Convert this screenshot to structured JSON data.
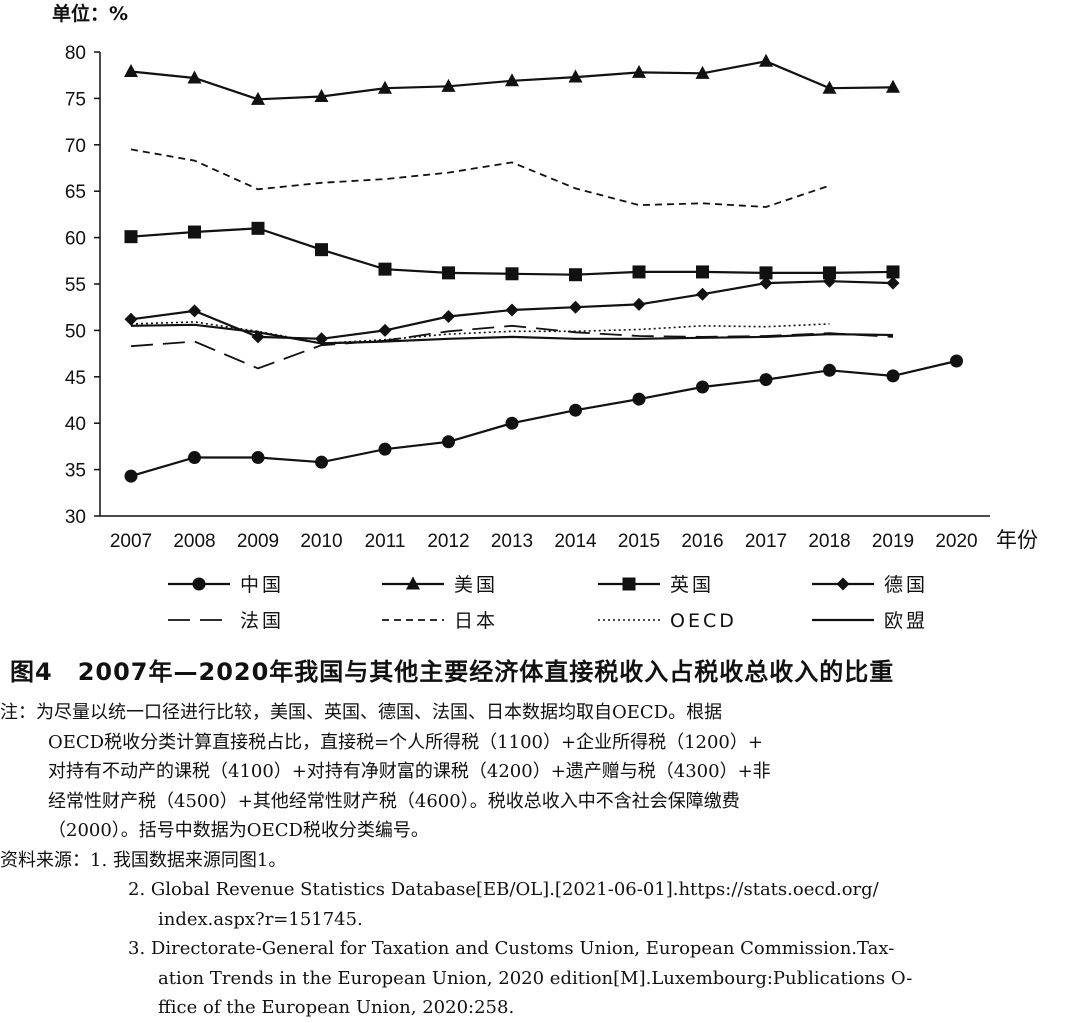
{
  "unit_label": "单位：%",
  "xaxis_suffix": "年份",
  "caption": "图4　2007年—2020年我国与其他主要经济体直接税收入占税收总收入的比重",
  "notes": {
    "note_lines": [
      "注：为尽量以统一口径进行比较，美国、英国、德国、法国、日本数据均取自OECD。根据",
      "OECD税收分类计算直接税占比，直接税=个人所得税（1100）+企业所得税（1200）+",
      "对持有不动产的课税（4100）+对持有净财富的课税（4200）+遗产赠与税（4300）+非",
      "经常性财产税（4500）+其他经常性财产税（4600）。税收总收入中不含社会保障缴费",
      "（2000）。括号中数据为OECD税收分类编号。"
    ],
    "source_head": "资料来源：1. 我国数据来源同图1。",
    "source_lines": [
      "2. Global Revenue Statistics Database[EB/OL].[2021-06-01].https://stats.oecd.org/",
      "index.aspx?r=151745.",
      "3. Directorate-General for Taxation and Customs Union, European Commission.Tax-",
      "ation Trends in the European Union, 2020 edition[M].Luxembourg:Publications O-",
      "ffice of the European Union, 2020:258."
    ]
  },
  "chart_data": {
    "type": "line",
    "x": [
      "2007",
      "2008",
      "2009",
      "2010",
      "2011",
      "2012",
      "2013",
      "2014",
      "2015",
      "2016",
      "2017",
      "2018",
      "2019",
      "2020"
    ],
    "ylim": [
      30,
      80
    ],
    "yticks": [
      30,
      35,
      40,
      45,
      50,
      55,
      60,
      65,
      70,
      75,
      80
    ],
    "grid": false,
    "legend_position": "bottom",
    "series": [
      {
        "name": "中国",
        "marker": "circle",
        "dash": "solid",
        "color": "#111111",
        "values": [
          34.3,
          36.3,
          36.3,
          35.8,
          37.2,
          38.0,
          40.0,
          41.4,
          42.6,
          43.9,
          44.7,
          45.7,
          45.1,
          46.7
        ]
      },
      {
        "name": "美国",
        "marker": "triangle",
        "dash": "solid",
        "color": "#111111",
        "values": [
          77.9,
          77.2,
          74.9,
          75.2,
          76.1,
          76.3,
          76.9,
          77.3,
          77.8,
          77.7,
          79.0,
          76.1,
          76.2,
          null
        ]
      },
      {
        "name": "英国",
        "marker": "square",
        "dash": "solid",
        "color": "#111111",
        "values": [
          60.1,
          60.6,
          61.0,
          58.7,
          56.6,
          56.2,
          56.1,
          56.0,
          56.3,
          56.3,
          56.2,
          56.2,
          56.3,
          null
        ]
      },
      {
        "name": "德国",
        "marker": "diamond",
        "dash": "solid",
        "color": "#111111",
        "values": [
          51.2,
          52.1,
          49.3,
          49.1,
          50.0,
          51.5,
          52.2,
          52.5,
          52.8,
          53.9,
          55.1,
          55.3,
          55.1,
          null
        ]
      },
      {
        "name": "法国",
        "marker": "none",
        "dash": "longdash",
        "color": "#111111",
        "values": [
          48.3,
          48.8,
          45.9,
          48.4,
          48.9,
          49.9,
          50.5,
          49.8,
          49.4,
          49.3,
          49.4,
          49.7,
          49.3,
          null
        ]
      },
      {
        "name": "日本",
        "marker": "none",
        "dash": "shortdash",
        "color": "#111111",
        "values": [
          69.5,
          68.3,
          65.2,
          65.9,
          66.3,
          67.0,
          68.1,
          65.3,
          63.5,
          63.7,
          63.3,
          65.6,
          null,
          null
        ]
      },
      {
        "name": "OECD",
        "marker": "none",
        "dash": "dotted",
        "color": "#111111",
        "values": [
          50.7,
          50.9,
          49.9,
          48.6,
          49.0,
          49.6,
          49.9,
          49.9,
          50.1,
          50.5,
          50.4,
          50.7,
          null,
          null
        ]
      },
      {
        "name": "欧盟",
        "marker": "none",
        "dash": "solid",
        "color": "#111111",
        "values": [
          50.5,
          50.6,
          49.8,
          48.6,
          48.8,
          49.1,
          49.3,
          49.1,
          49.1,
          49.2,
          49.3,
          49.6,
          49.5,
          null
        ]
      }
    ]
  }
}
